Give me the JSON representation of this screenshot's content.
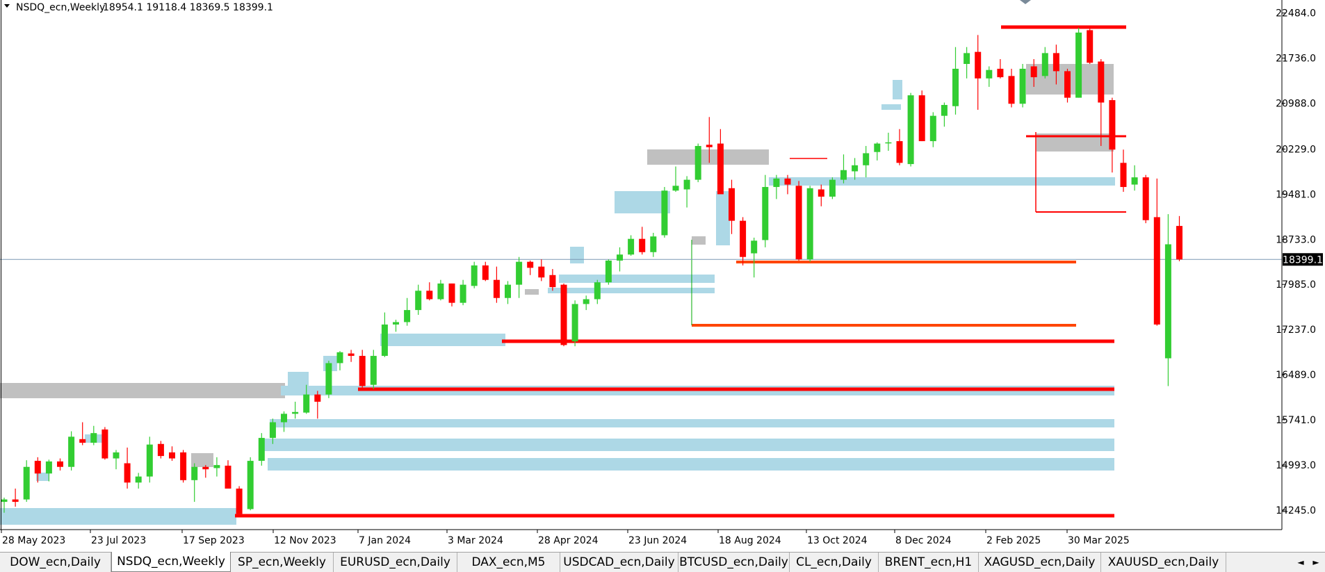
{
  "header": {
    "symbol_title": "NSDQ_ecn,Weekly",
    "ohlc": "18954.1 19118.4 18369.5 18399.1"
  },
  "price_scale": {
    "ticks": [
      "22484.0",
      "21736.0",
      "20988.0",
      "20229.0",
      "19481.0",
      "18733.0",
      "17985.0",
      "17237.0",
      "16489.0",
      "15741.0",
      "14993.0",
      "14245.0"
    ],
    "current_price_label": "18399.1"
  },
  "time_scale": {
    "labels": [
      "28 May 2023",
      "23 Jul 2023",
      "17 Sep 2023",
      "12 Nov 2023",
      "7 Jan 2024",
      "3 Mar 2024",
      "28 Apr 2024",
      "23 Jun 2024",
      "18 Aug 2024",
      "13 Oct 2024",
      "8 Dec 2024",
      "2 Feb 2025",
      "30 Mar 2025"
    ]
  },
  "tabs": [
    {
      "label": "DOW_ecn,Daily",
      "active": false
    },
    {
      "label": "NSDQ_ecn,Weekly",
      "active": true
    },
    {
      "label": "SP_ecn,Weekly",
      "active": false
    },
    {
      "label": "EURUSD_ecn,Daily",
      "active": false
    },
    {
      "label": "DAX_ecn,M5",
      "active": false
    },
    {
      "label": "USDCAD_ecn,Daily",
      "active": false
    },
    {
      "label": "BTCUSD_ecn,Daily",
      "active": false
    },
    {
      "label": "CL_ecn,Daily",
      "active": false
    },
    {
      "label": "BRENT_ecn,H1",
      "active": false
    },
    {
      "label": "XAGUSD_ecn,Daily",
      "active": false
    },
    {
      "label": "XAUUSD_ecn,Daily",
      "active": false
    }
  ],
  "tab_nav": {
    "left": "◄",
    "right": "►"
  },
  "chart_data": {
    "type": "candlestick",
    "title": "NSDQ_ecn,Weekly",
    "symbol": "NSDQ_ecn",
    "timeframe": "Weekly",
    "ylim": [
      13920,
      22700
    ],
    "bull_color": "#32cd32",
    "bear_color": "#ff0000",
    "current_price": 18399.1,
    "candles": [
      {
        "o": 14380,
        "h": 14450,
        "l": 14200,
        "c": 14420
      },
      {
        "o": 14420,
        "h": 14600,
        "l": 14300,
        "c": 14380
      },
      {
        "o": 14420,
        "h": 15070,
        "l": 14380,
        "c": 14960
      },
      {
        "o": 15060,
        "h": 15120,
        "l": 14700,
        "c": 14850
      },
      {
        "o": 14850,
        "h": 15080,
        "l": 14720,
        "c": 15050
      },
      {
        "o": 15050,
        "h": 15100,
        "l": 14900,
        "c": 14960
      },
      {
        "o": 14960,
        "h": 15550,
        "l": 14900,
        "c": 15460
      },
      {
        "o": 15420,
        "h": 15700,
        "l": 15320,
        "c": 15360
      },
      {
        "o": 15360,
        "h": 15640,
        "l": 15320,
        "c": 15520
      },
      {
        "o": 15580,
        "h": 15620,
        "l": 15080,
        "c": 15100
      },
      {
        "o": 15100,
        "h": 15240,
        "l": 14920,
        "c": 15200
      },
      {
        "o": 15020,
        "h": 15280,
        "l": 14600,
        "c": 14700
      },
      {
        "o": 14700,
        "h": 14860,
        "l": 14600,
        "c": 14800
      },
      {
        "o": 14800,
        "h": 15460,
        "l": 14700,
        "c": 15330
      },
      {
        "o": 15340,
        "h": 15390,
        "l": 15100,
        "c": 15140
      },
      {
        "o": 15200,
        "h": 15300,
        "l": 15060,
        "c": 15100
      },
      {
        "o": 15200,
        "h": 15240,
        "l": 14700,
        "c": 14740
      },
      {
        "o": 14740,
        "h": 15020,
        "l": 14380,
        "c": 14960
      },
      {
        "o": 14960,
        "h": 14990,
        "l": 14780,
        "c": 14920
      },
      {
        "o": 14940,
        "h": 15120,
        "l": 14800,
        "c": 14990
      },
      {
        "o": 14980,
        "h": 15070,
        "l": 14600,
        "c": 14600
      },
      {
        "o": 14600,
        "h": 14640,
        "l": 14180,
        "c": 14180
      },
      {
        "o": 14260,
        "h": 15120,
        "l": 14240,
        "c": 15060
      },
      {
        "o": 15060,
        "h": 15520,
        "l": 14980,
        "c": 15440
      },
      {
        "o": 15440,
        "h": 15760,
        "l": 15340,
        "c": 15700
      },
      {
        "o": 15700,
        "h": 15880,
        "l": 15540,
        "c": 15840
      },
      {
        "o": 15840,
        "h": 16040,
        "l": 15760,
        "c": 15870
      },
      {
        "o": 15860,
        "h": 16320,
        "l": 15840,
        "c": 16160
      },
      {
        "o": 16160,
        "h": 16220,
        "l": 15760,
        "c": 16040
      },
      {
        "o": 16160,
        "h": 16720,
        "l": 16100,
        "c": 16680
      },
      {
        "o": 16680,
        "h": 16880,
        "l": 16560,
        "c": 16860
      },
      {
        "o": 16840,
        "h": 16900,
        "l": 16700,
        "c": 16800
      },
      {
        "o": 16800,
        "h": 16900,
        "l": 16250,
        "c": 16300
      },
      {
        "o": 16320,
        "h": 16900,
        "l": 16250,
        "c": 16800
      },
      {
        "o": 16800,
        "h": 17520,
        "l": 16780,
        "c": 17320
      },
      {
        "o": 17320,
        "h": 17400,
        "l": 17200,
        "c": 17360
      },
      {
        "o": 17360,
        "h": 17760,
        "l": 17300,
        "c": 17560
      },
      {
        "o": 17560,
        "h": 17980,
        "l": 17480,
        "c": 17880
      },
      {
        "o": 17880,
        "h": 18020,
        "l": 17720,
        "c": 17740
      },
      {
        "o": 17740,
        "h": 18060,
        "l": 17720,
        "c": 18000
      },
      {
        "o": 18000,
        "h": 18000,
        "l": 17620,
        "c": 17680
      },
      {
        "o": 17680,
        "h": 18060,
        "l": 17640,
        "c": 17980
      },
      {
        "o": 17960,
        "h": 18360,
        "l": 17920,
        "c": 18300
      },
      {
        "o": 18300,
        "h": 18360,
        "l": 18040,
        "c": 18060
      },
      {
        "o": 18060,
        "h": 18280,
        "l": 17680,
        "c": 17760
      },
      {
        "o": 17760,
        "h": 18040,
        "l": 17660,
        "c": 17980
      },
      {
        "o": 17980,
        "h": 18440,
        "l": 17760,
        "c": 18360
      },
      {
        "o": 18360,
        "h": 18380,
        "l": 18140,
        "c": 18260
      },
      {
        "o": 18280,
        "h": 18400,
        "l": 18040,
        "c": 18100
      },
      {
        "o": 18140,
        "h": 18240,
        "l": 17880,
        "c": 17940
      },
      {
        "o": 17980,
        "h": 18000,
        "l": 16960,
        "c": 16980
      },
      {
        "o": 17040,
        "h": 17720,
        "l": 16960,
        "c": 17660
      },
      {
        "o": 17660,
        "h": 17800,
        "l": 17560,
        "c": 17740
      },
      {
        "o": 17740,
        "h": 18060,
        "l": 17660,
        "c": 18020
      },
      {
        "o": 18020,
        "h": 18400,
        "l": 17980,
        "c": 18380
      },
      {
        "o": 18380,
        "h": 18600,
        "l": 18200,
        "c": 18480
      },
      {
        "o": 18480,
        "h": 18800,
        "l": 18460,
        "c": 18740
      },
      {
        "o": 18740,
        "h": 18940,
        "l": 18480,
        "c": 18520
      },
      {
        "o": 18520,
        "h": 18840,
        "l": 18440,
        "c": 18780
      },
      {
        "o": 18800,
        "h": 19600,
        "l": 18760,
        "c": 19540
      },
      {
        "o": 19540,
        "h": 19940,
        "l": 19520,
        "c": 19620
      },
      {
        "o": 19560,
        "h": 19780,
        "l": 19260,
        "c": 19720
      },
      {
        "o": 19720,
        "h": 20320,
        "l": 19680,
        "c": 20280
      },
      {
        "o": 20300,
        "h": 20760,
        "l": 20000,
        "c": 20260
      },
      {
        "o": 20320,
        "h": 20560,
        "l": 19500,
        "c": 19480
      },
      {
        "o": 19580,
        "h": 19720,
        "l": 18820,
        "c": 19040
      },
      {
        "o": 19040,
        "h": 19100,
        "l": 18300,
        "c": 18440
      },
      {
        "o": 18500,
        "h": 18760,
        "l": 18100,
        "c": 18710
      },
      {
        "o": 18720,
        "h": 19800,
        "l": 18600,
        "c": 19600
      },
      {
        "o": 19600,
        "h": 19800,
        "l": 19400,
        "c": 19740
      },
      {
        "o": 19740,
        "h": 19800,
        "l": 19480,
        "c": 19640
      },
      {
        "o": 19620,
        "h": 19700,
        "l": 18380,
        "c": 18400
      },
      {
        "o": 18400,
        "h": 19620,
        "l": 18360,
        "c": 19580
      },
      {
        "o": 19560,
        "h": 19640,
        "l": 19280,
        "c": 19440
      },
      {
        "o": 19440,
        "h": 19760,
        "l": 19400,
        "c": 19720
      },
      {
        "o": 19720,
        "h": 20140,
        "l": 19660,
        "c": 19880
      },
      {
        "o": 19860,
        "h": 20080,
        "l": 19720,
        "c": 19960
      },
      {
        "o": 19960,
        "h": 20280,
        "l": 19760,
        "c": 20160
      },
      {
        "o": 20180,
        "h": 20340,
        "l": 20040,
        "c": 20320
      },
      {
        "o": 20330,
        "h": 20500,
        "l": 20200,
        "c": 20340
      },
      {
        "o": 20360,
        "h": 20560,
        "l": 19960,
        "c": 20000
      },
      {
        "o": 19980,
        "h": 21160,
        "l": 19940,
        "c": 21120
      },
      {
        "o": 21120,
        "h": 21200,
        "l": 20360,
        "c": 20360
      },
      {
        "o": 20360,
        "h": 20840,
        "l": 20260,
        "c": 20780
      },
      {
        "o": 20780,
        "h": 21000,
        "l": 20600,
        "c": 20960
      },
      {
        "o": 20940,
        "h": 21920,
        "l": 20800,
        "c": 21560
      },
      {
        "o": 21640,
        "h": 21920,
        "l": 21400,
        "c": 21820
      },
      {
        "o": 21840,
        "h": 22120,
        "l": 20880,
        "c": 21400
      },
      {
        "o": 21400,
        "h": 21600,
        "l": 21260,
        "c": 21540
      },
      {
        "o": 21560,
        "h": 21720,
        "l": 21400,
        "c": 21420
      },
      {
        "o": 21440,
        "h": 21560,
        "l": 20920,
        "c": 20980
      },
      {
        "o": 20980,
        "h": 21640,
        "l": 20920,
        "c": 21560
      },
      {
        "o": 21600,
        "h": 21720,
        "l": 21260,
        "c": 21420
      },
      {
        "o": 21440,
        "h": 21920,
        "l": 21400,
        "c": 21820
      },
      {
        "o": 21820,
        "h": 21960,
        "l": 21300,
        "c": 21520
      },
      {
        "o": 21520,
        "h": 21560,
        "l": 21000,
        "c": 21080
      },
      {
        "o": 21080,
        "h": 22240,
        "l": 21080,
        "c": 22160
      },
      {
        "o": 22200,
        "h": 22230,
        "l": 21640,
        "c": 21660
      },
      {
        "o": 21680,
        "h": 21720,
        "l": 20280,
        "c": 21000
      },
      {
        "o": 21040,
        "h": 21080,
        "l": 19840,
        "c": 20220
      },
      {
        "o": 20000,
        "h": 20220,
        "l": 19520,
        "c": 19600
      },
      {
        "o": 19640,
        "h": 19960,
        "l": 19540,
        "c": 19760
      },
      {
        "o": 19760,
        "h": 19800,
        "l": 19000,
        "c": 19050
      },
      {
        "o": 19100,
        "h": 19740,
        "l": 17300,
        "c": 17320
      },
      {
        "o": 16760,
        "h": 19150,
        "l": 16300,
        "c": 18650
      },
      {
        "o": 18954.1,
        "h": 19118.4,
        "l": 18369.5,
        "c": 18399.1
      }
    ]
  }
}
